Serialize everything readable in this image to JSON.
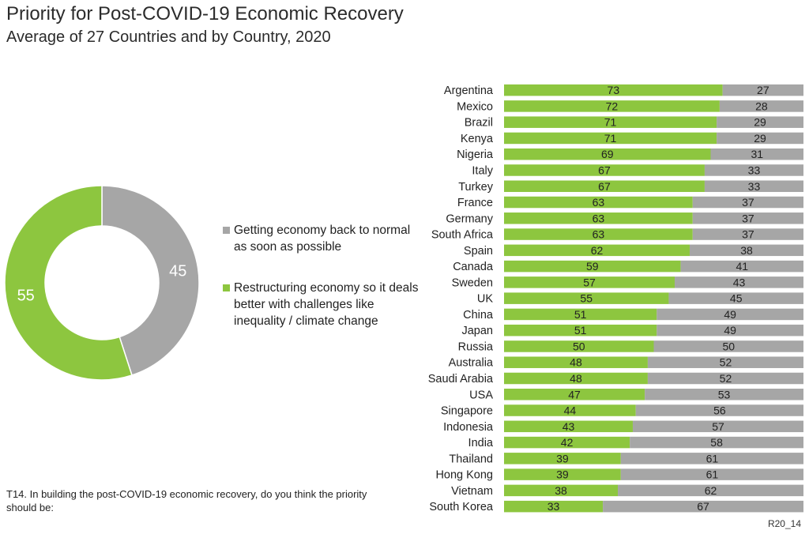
{
  "title": "Priority for Post-COVID-19 Economic Recovery",
  "subtitle": "Average of 27 Countries and by Country, 2020",
  "footnote": "T14. In building the post-COVID-19 economic recovery, do you think the priority should be:",
  "code": "R20_14",
  "colors": {
    "back_to_normal": "#a6a6a6",
    "restructuring": "#8dc63f"
  },
  "legend": [
    {
      "key": "back_to_normal",
      "label": "Getting economy back to normal as soon as possible"
    },
    {
      "key": "restructuring",
      "label": "Restructuring economy so it deals better with challenges like inequality / climate change"
    }
  ],
  "chart_data": [
    {
      "type": "pie",
      "subtype": "donut",
      "title": "Average of 27 Countries",
      "slices": [
        {
          "key": "back_to_normal",
          "label": "Getting economy back to normal as soon as possible",
          "value": 45
        },
        {
          "key": "restructuring",
          "label": "Restructuring economy so it deals better with challenges like inequality / climate change",
          "value": 55
        }
      ]
    },
    {
      "type": "bar",
      "orientation": "horizontal",
      "stacked": true,
      "categories": [
        "Argentina",
        "Mexico",
        "Brazil",
        "Kenya",
        "Nigeria",
        "Italy",
        "Turkey",
        "France",
        "Germany",
        "South Africa",
        "Spain",
        "Canada",
        "Sweden",
        "UK",
        "China",
        "Japan",
        "Russia",
        "Australia",
        "Saudi Arabia",
        "USA",
        "Singapore",
        "Indonesia",
        "India",
        "Thailand",
        "Hong Kong",
        "Vietnam",
        "South Korea"
      ],
      "series": [
        {
          "key": "restructuring",
          "name": "Restructuring economy so it deals better with challenges like inequality / climate change",
          "values": [
            73,
            72,
            71,
            71,
            69,
            67,
            67,
            63,
            63,
            63,
            62,
            59,
            57,
            55,
            51,
            51,
            50,
            48,
            48,
            47,
            44,
            43,
            42,
            39,
            39,
            38,
            33
          ]
        },
        {
          "key": "back_to_normal",
          "name": "Getting economy back to normal as soon as possible",
          "values": [
            27,
            28,
            29,
            29,
            31,
            33,
            33,
            37,
            37,
            37,
            38,
            41,
            43,
            45,
            49,
            49,
            50,
            52,
            52,
            53,
            56,
            57,
            58,
            61,
            61,
            62,
            67
          ]
        }
      ],
      "xlim": [
        0,
        100
      ]
    }
  ]
}
